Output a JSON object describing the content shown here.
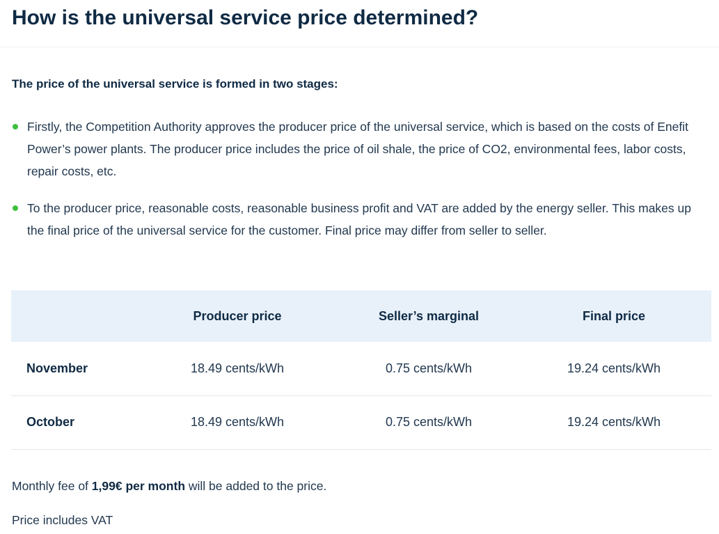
{
  "header": {
    "title": "How is the universal service price determined?"
  },
  "intro": "The price of the universal service is formed in two stages:",
  "stages": [
    "Firstly, the Competition Authority approves the producer price of the universal service, which is based on the costs of Enefit Power’s power plants. The producer price includes the price of oil shale, the price of CO2, environmental fees, labor costs, repair costs, etc.",
    "To the producer price, reasonable costs, reasonable business profit and VAT are added by the energy seller. This makes up the final price of the universal service for the customer. Final price may differ from seller to seller."
  ],
  "colors": {
    "heading": "#0f2a44",
    "bullet": "#3fbf3f",
    "table_header_bg": "#e8f1fa",
    "row_divider": "#e3e7eb"
  },
  "table": {
    "columns": [
      "",
      "Producer price",
      "Seller’s marginal",
      "Final price"
    ],
    "rows": [
      {
        "month": "November",
        "producer": "18.49 cents/kWh",
        "marginal": "0.75 cents/kWh",
        "final": "19.24 cents/kWh"
      },
      {
        "month": "October",
        "producer": "18.49 cents/kWh",
        "marginal": "0.75 cents/kWh",
        "final": "19.24 cents/kWh"
      }
    ]
  },
  "fee": {
    "prefix": "Monthly fee of ",
    "amount": "1,99€ per month",
    "suffix": " will be added to the price."
  },
  "vat_note": "Price includes VAT"
}
